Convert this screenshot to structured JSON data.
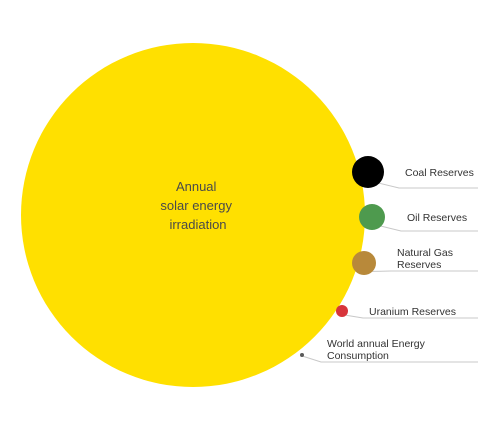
{
  "diagram": {
    "main": {
      "label_lines": [
        "Annual",
        "solar energy",
        "irradiation"
      ],
      "color": "#FFE000",
      "label_color": "#4a4a4a"
    },
    "items": [
      {
        "key": "coal",
        "label_lines": [
          "Coal Reserves"
        ],
        "color": "#000000"
      },
      {
        "key": "oil",
        "label_lines": [
          "Oil Reserves"
        ],
        "color": "#4E9A4E"
      },
      {
        "key": "natural-gas",
        "label_lines": [
          "Natural Gas",
          "Reserves"
        ],
        "color": "#B8893A"
      },
      {
        "key": "uranium",
        "label_lines": [
          "Uranium Reserves"
        ],
        "color": "#D7353B"
      },
      {
        "key": "world-consumption",
        "label_lines": [
          "World annual Energy",
          "Consumption"
        ],
        "color": "#5a5a5a"
      }
    ],
    "leader_color": "#c8c8c8",
    "label_color": "#333333"
  }
}
